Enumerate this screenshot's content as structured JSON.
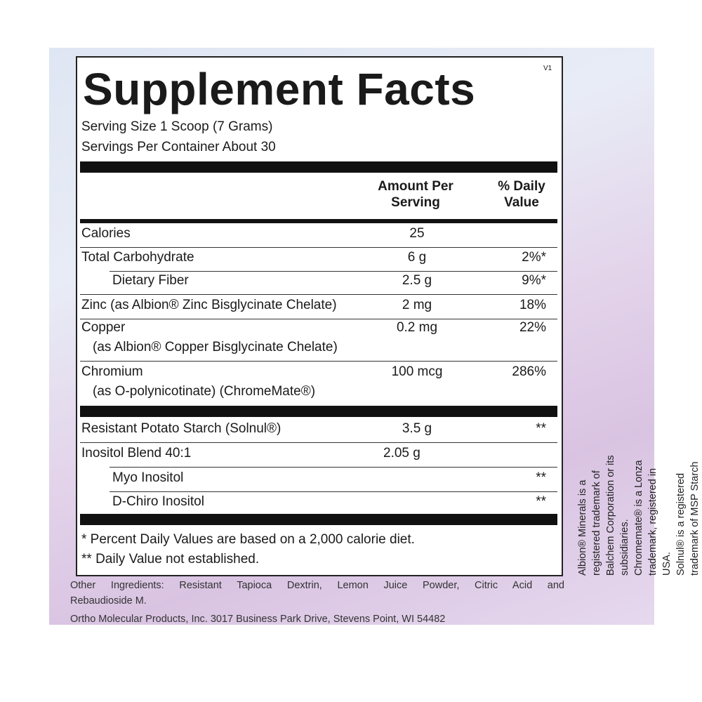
{
  "title": "Supplement Facts",
  "version": "V1",
  "serving_size": "Serving Size 1 Scoop (7 Grams)",
  "servings_per_container": "Servings Per Container About 30",
  "headers": {
    "amount_1": "Amount Per",
    "amount_2": "Serving",
    "dv_1": "% Daily",
    "dv_2": "Value"
  },
  "rows": [
    {
      "name": "Calories",
      "amount": "25",
      "dv": ""
    },
    {
      "name": "Total Carbohydrate",
      "amount": "6 g",
      "dv": "2%*"
    },
    {
      "name": "Dietary Fiber",
      "amount": "2.5 g",
      "dv": "9%*"
    },
    {
      "name": "Zinc (as Albion® Zinc Bisglycinate Chelate)",
      "amount": "2 mg",
      "dv": "18%"
    },
    {
      "name": "Copper",
      "sub": "(as Albion® Copper Bisglycinate Chelate)",
      "amount": "0.2 mg",
      "dv": "22%"
    },
    {
      "name": "Chromium",
      "sub": "(as O-polynicotinate) (ChromeMate®)",
      "amount": "100 mcg",
      "dv": "286%"
    },
    {
      "name": "Resistant Potato Starch (Solnul®)",
      "amount": "3.5 g",
      "dv": "**"
    },
    {
      "name": "Inositol Blend 40:1",
      "amount": "2.05 g",
      "dv": ""
    },
    {
      "name": "Myo Inositol",
      "amount": "",
      "dv": "**"
    },
    {
      "name": "D-Chiro Inositol",
      "amount": "",
      "dv": "**"
    }
  ],
  "footnotes": [
    "* Percent Daily Values are based on a 2,000 calorie diet.",
    "** Daily Value not established."
  ],
  "other_ingredients": [
    "Other Ingredients: Resistant Tapioca Dextrin, Lemon Juice Powder, Citric Acid and",
    "Rebaudioside M."
  ],
  "address": "Ortho Molecular Products, Inc. 3017 Business Park Drive, Stevens Point, WI 54482",
  "trademarks": [
    "Albion® Minerals is a registered trademark of Balchem Corporation or its subsidiaries.",
    "Chromemate® is a Lonza trademark, registered in USA.",
    "Solnul® is a registered trademark of MSP Starch Products, Inc."
  ]
}
